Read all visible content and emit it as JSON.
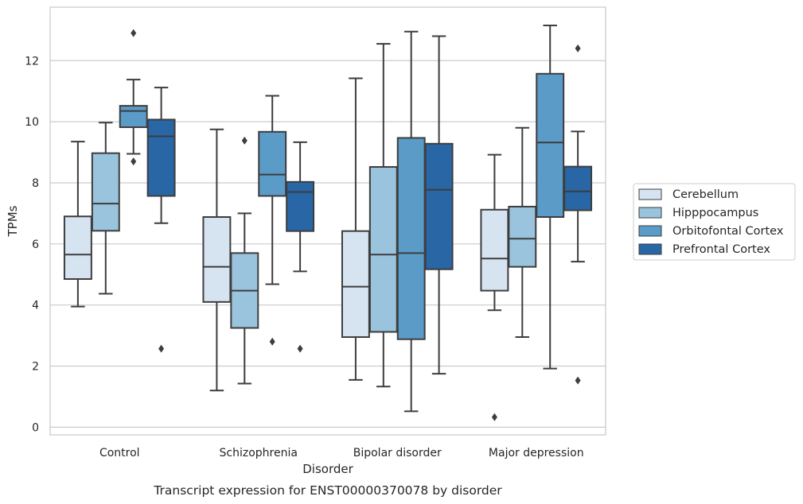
{
  "caption": "Transcript expression for ENST00000370078 by disorder",
  "chart_data": {
    "type": "box",
    "xlabel": "Disorder",
    "ylabel": "TPMs",
    "ylim": [
      -0.25,
      13.75
    ],
    "yticks": [
      0,
      2,
      4,
      6,
      8,
      10,
      12
    ],
    "grid": "horizontal",
    "legend_position": "right",
    "categories": [
      "Control",
      "Schizophrenia",
      "Bipolar disorder",
      "Major depression"
    ],
    "series": [
      {
        "name": "Cerebellum",
        "color": "#d6e4f2",
        "boxes": [
          {
            "whisker_low": 3.95,
            "q1": 4.85,
            "median": 5.65,
            "q3": 6.9,
            "whisker_high": 9.35,
            "outliers": []
          },
          {
            "whisker_low": 1.2,
            "q1": 4.1,
            "median": 5.25,
            "q3": 6.88,
            "whisker_high": 9.75,
            "outliers": []
          },
          {
            "whisker_low": 1.55,
            "q1": 2.95,
            "median": 4.6,
            "q3": 6.42,
            "whisker_high": 11.42,
            "outliers": []
          },
          {
            "whisker_low": 3.83,
            "q1": 4.47,
            "median": 5.52,
            "q3": 7.12,
            "whisker_high": 8.92,
            "outliers": [
              0.33
            ]
          }
        ]
      },
      {
        "name": "Hipppocampus",
        "color": "#9ac3dd",
        "boxes": [
          {
            "whisker_low": 4.37,
            "q1": 6.43,
            "median": 7.32,
            "q3": 8.97,
            "whisker_high": 9.97,
            "outliers": []
          },
          {
            "whisker_low": 1.43,
            "q1": 3.25,
            "median": 4.47,
            "q3": 5.7,
            "whisker_high": 7.0,
            "outliers": [
              9.38
            ]
          },
          {
            "whisker_low": 1.33,
            "q1": 3.12,
            "median": 5.65,
            "q3": 8.52,
            "whisker_high": 12.55,
            "outliers": []
          },
          {
            "whisker_low": 2.95,
            "q1": 5.25,
            "median": 6.17,
            "q3": 7.22,
            "whisker_high": 9.8,
            "outliers": []
          }
        ]
      },
      {
        "name": "Orbitofontal Cortex",
        "color": "#5a9bc8",
        "boxes": [
          {
            "whisker_low": 8.95,
            "q1": 9.82,
            "median": 10.35,
            "q3": 10.52,
            "whisker_high": 11.38,
            "outliers": [
              8.7,
              12.9
            ]
          },
          {
            "whisker_low": 4.68,
            "q1": 7.57,
            "median": 8.27,
            "q3": 9.67,
            "whisker_high": 10.85,
            "outliers": [
              2.8
            ]
          },
          {
            "whisker_low": 0.52,
            "q1": 2.88,
            "median": 5.7,
            "q3": 9.47,
            "whisker_high": 12.95,
            "outliers": []
          },
          {
            "whisker_low": 1.92,
            "q1": 6.88,
            "median": 9.32,
            "q3": 11.57,
            "whisker_high": 13.15,
            "outliers": []
          }
        ]
      },
      {
        "name": "Prefrontal Cortex",
        "color": "#2866a6",
        "boxes": [
          {
            "whisker_low": 6.68,
            "q1": 7.57,
            "median": 9.52,
            "q3": 10.07,
            "whisker_high": 11.12,
            "outliers": [
              2.57
            ]
          },
          {
            "whisker_low": 5.1,
            "q1": 6.42,
            "median": 7.7,
            "q3": 8.03,
            "whisker_high": 9.33,
            "outliers": [
              2.57
            ]
          },
          {
            "whisker_low": 1.75,
            "q1": 5.17,
            "median": 7.77,
            "q3": 9.28,
            "whisker_high": 12.8,
            "outliers": []
          },
          {
            "whisker_low": 5.42,
            "q1": 7.1,
            "median": 7.72,
            "q3": 8.53,
            "whisker_high": 9.68,
            "outliers": [
              1.53,
              12.4
            ]
          }
        ]
      }
    ]
  }
}
